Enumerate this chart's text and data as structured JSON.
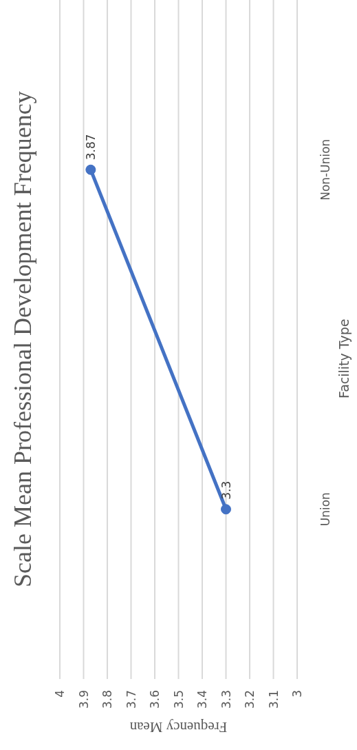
{
  "chart_data": {
    "type": "line",
    "orientation": "horizontal",
    "title": "Scale Mean Professional Development Frequency",
    "xlabel": "Frequency Mean",
    "ylabel": "Facility Type",
    "categories": [
      "Non-Union",
      "Union"
    ],
    "series": [
      {
        "color": "#4472c4",
        "values": [
          3.87,
          3.3
        ]
      }
    ],
    "xlim": [
      4,
      3
    ],
    "xticks": [
      4,
      3.9,
      3.8,
      3.7,
      3.6,
      3.5,
      3.4,
      3.3,
      3.2,
      3.1,
      3
    ],
    "grid": "x",
    "marker": "circle",
    "line_style": "solid",
    "data_labels": true
  }
}
